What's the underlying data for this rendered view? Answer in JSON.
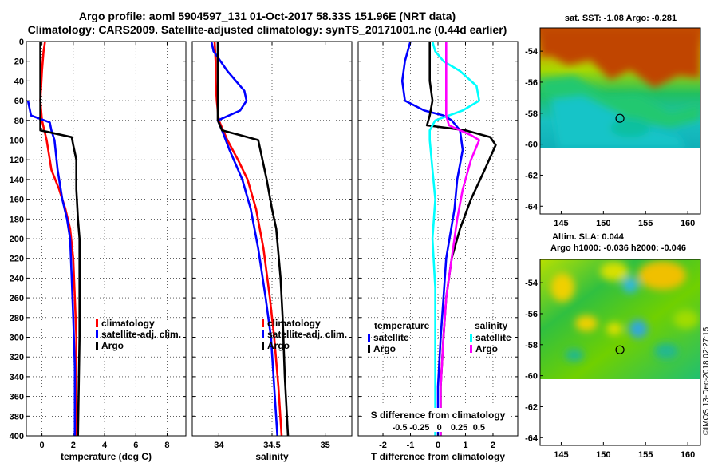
{
  "title_line1": "Argo profile: aoml 5904597_131 01-Oct-2017 58.33S 151.96E (NRT data)",
  "title_line2": "Climatology: CARS2009. Satellite-adjusted climatology: synTS_20171001.nc (0.44d earlier)",
  "colors": {
    "climatology": "#ff0000",
    "satellite": "#0000ff",
    "argo": "#000000",
    "sat_salinity": "#00ffff",
    "argo_salinity": "#ff00ff"
  },
  "chart_data": [
    {
      "type": "line",
      "name": "temperature",
      "xlabel": "temperature (deg C)",
      "xlim": [
        -1,
        9.2
      ],
      "ylim": [
        0,
        400
      ],
      "xticks": [
        0,
        2,
        4,
        6,
        8
      ],
      "yticks": [
        0,
        20,
        40,
        60,
        80,
        100,
        120,
        140,
        160,
        180,
        200,
        220,
        240,
        260,
        280,
        300,
        320,
        340,
        360,
        380,
        400
      ],
      "grid": true,
      "legend": [
        "climatology",
        "satellite-adj. clim.",
        "Argo"
      ],
      "series": [
        {
          "name": "climatology",
          "color": "#ff0000",
          "points": [
            [
              0.2,
              0
            ],
            [
              0.1,
              10
            ],
            [
              0.0,
              30
            ],
            [
              -0.1,
              60
            ],
            [
              0.0,
              80
            ],
            [
              0.3,
              100
            ],
            [
              0.6,
              130
            ],
            [
              1.1,
              150
            ],
            [
              1.5,
              170
            ],
            [
              1.8,
              190
            ],
            [
              2.0,
              220
            ],
            [
              2.1,
              260
            ],
            [
              2.2,
              300
            ],
            [
              2.2,
              350
            ],
            [
              2.2,
              400
            ]
          ]
        },
        {
          "name": "satellite-adj. clim.",
          "color": "#0000ff",
          "points": [
            [
              -0.9,
              60
            ],
            [
              -0.7,
              75
            ],
            [
              0.5,
              82
            ],
            [
              0.6,
              90
            ],
            [
              0.8,
              100
            ],
            [
              1.0,
              130
            ],
            [
              1.3,
              160
            ],
            [
              1.6,
              180
            ],
            [
              1.8,
              200
            ],
            [
              1.9,
              240
            ],
            [
              2.0,
              280
            ],
            [
              2.1,
              330
            ],
            [
              2.1,
              400
            ]
          ]
        },
        {
          "name": "Argo",
          "color": "#000000",
          "points": [
            [
              -0.1,
              0
            ],
            [
              -0.1,
              30
            ],
            [
              -0.1,
              50
            ],
            [
              -0.1,
              70
            ],
            [
              -0.1,
              90
            ],
            [
              1.9,
              97
            ],
            [
              2.0,
              105
            ],
            [
              2.2,
              120
            ],
            [
              2.2,
              150
            ],
            [
              2.3,
              180
            ],
            [
              2.4,
              200
            ],
            [
              2.4,
              260
            ],
            [
              2.4,
              300
            ],
            [
              2.3,
              400
            ]
          ]
        }
      ]
    },
    {
      "type": "line",
      "name": "salinity",
      "xlabel": "salinity",
      "xlim": [
        33.75,
        35.25
      ],
      "ylim": [
        0,
        400
      ],
      "xticks": [
        34,
        34.5,
        35
      ],
      "xticklabels": [
        "34",
        "34.5",
        "35"
      ],
      "grid": true,
      "legend": [
        "climatology",
        "satellite-adj. clim.",
        "Argo"
      ],
      "series": [
        {
          "name": "climatology",
          "color": "#ff0000",
          "points": [
            [
              33.96,
              0
            ],
            [
              33.97,
              20
            ],
            [
              33.97,
              40
            ],
            [
              33.98,
              60
            ],
            [
              34.0,
              80
            ],
            [
              34.08,
              100
            ],
            [
              34.18,
              120
            ],
            [
              34.27,
              140
            ],
            [
              34.35,
              170
            ],
            [
              34.42,
              210
            ],
            [
              34.48,
              260
            ],
            [
              34.52,
              300
            ],
            [
              34.56,
              350
            ],
            [
              34.59,
              400
            ]
          ]
        },
        {
          "name": "satellite-adj. clim.",
          "color": "#0000ff",
          "points": [
            [
              33.93,
              0
            ],
            [
              33.95,
              10
            ],
            [
              34.08,
              30
            ],
            [
              34.24,
              50
            ],
            [
              34.26,
              60
            ],
            [
              34.2,
              70
            ],
            [
              33.99,
              80
            ],
            [
              34.03,
              90
            ],
            [
              34.1,
              110
            ],
            [
              34.22,
              140
            ],
            [
              34.3,
              170
            ],
            [
              34.37,
              210
            ],
            [
              34.44,
              260
            ],
            [
              34.49,
              300
            ],
            [
              34.52,
              350
            ],
            [
              34.55,
              400
            ]
          ]
        },
        {
          "name": "Argo",
          "color": "#000000",
          "points": [
            [
              33.99,
              0
            ],
            [
              33.99,
              40
            ],
            [
              33.99,
              80
            ],
            [
              34.03,
              90
            ],
            [
              34.2,
              95
            ],
            [
              34.37,
              100
            ],
            [
              34.45,
              140
            ],
            [
              34.5,
              170
            ],
            [
              34.54,
              190
            ],
            [
              34.58,
              240
            ],
            [
              34.6,
              280
            ],
            [
              34.62,
              340
            ],
            [
              34.65,
              400
            ]
          ]
        }
      ]
    },
    {
      "type": "line",
      "name": "difference",
      "xlabel": "T difference from climatology",
      "xlim": [
        -2.9,
        2.9
      ],
      "ylim": [
        0,
        400
      ],
      "xticks": [
        -2,
        -1,
        0,
        1,
        2
      ],
      "top_axis_label": "S difference from climatology",
      "top_ticks": [
        "-0.5",
        "-0.25",
        "0",
        "0.25",
        "0.5"
      ],
      "grid": true,
      "legend_temperature": {
        "heading": "temperature",
        "items": [
          "satellite",
          "Argo"
        ]
      },
      "legend_salinity": {
        "heading": "salinity",
        "items": [
          "satellite",
          "Argo"
        ]
      },
      "series": [
        {
          "name": "temperature satellite",
          "color": "#0000ff",
          "points": [
            [
              -1.0,
              0
            ],
            [
              -1.2,
              20
            ],
            [
              -1.3,
              40
            ],
            [
              -1.2,
              60
            ],
            [
              -0.5,
              70
            ],
            [
              0.2,
              75
            ],
            [
              0.5,
              80
            ],
            [
              0.8,
              90
            ],
            [
              0.9,
              110
            ],
            [
              0.7,
              140
            ],
            [
              0.6,
              170
            ],
            [
              0.3,
              220
            ],
            [
              0.2,
              260
            ],
            [
              0.1,
              300
            ],
            [
              0.0,
              350
            ],
            [
              0.0,
              400
            ]
          ]
        },
        {
          "name": "temperature Argo",
          "color": "#000000",
          "points": [
            [
              -0.3,
              0
            ],
            [
              -0.3,
              20
            ],
            [
              -0.3,
              40
            ],
            [
              -0.2,
              60
            ],
            [
              -0.3,
              75
            ],
            [
              -0.4,
              85
            ],
            [
              1.0,
              90
            ],
            [
              1.9,
              97
            ],
            [
              2.1,
              105
            ],
            [
              1.7,
              130
            ],
            [
              1.2,
              160
            ],
            [
              0.8,
              190
            ],
            [
              0.5,
              220
            ],
            [
              0.3,
              260
            ],
            [
              0.2,
              300
            ],
            [
              0.1,
              350
            ],
            [
              0.1,
              400
            ]
          ]
        },
        {
          "name": "salinity satellite",
          "color": "#00ffff",
          "points": [
            [
              -0.2,
              0
            ],
            [
              -0.1,
              10
            ],
            [
              0.2,
              20
            ],
            [
              0.8,
              30
            ],
            [
              1.4,
              45
            ],
            [
              1.5,
              60
            ],
            [
              0.9,
              70
            ],
            [
              -0.1,
              80
            ],
            [
              -0.3,
              90
            ],
            [
              -0.3,
              100
            ],
            [
              -0.2,
              130
            ],
            [
              -0.1,
              160
            ],
            [
              -0.2,
              200
            ],
            [
              -0.1,
              250
            ],
            [
              -0.1,
              300
            ],
            [
              -0.1,
              350
            ],
            [
              -0.1,
              400
            ]
          ]
        },
        {
          "name": "salinity Argo",
          "color": "#ff00ff",
          "points": [
            [
              0.3,
              0
            ],
            [
              0.3,
              20
            ],
            [
              0.3,
              40
            ],
            [
              0.3,
              60
            ],
            [
              0.3,
              75
            ],
            [
              0.4,
              85
            ],
            [
              1.2,
              95
            ],
            [
              1.5,
              100
            ],
            [
              1.2,
              120
            ],
            [
              0.9,
              150
            ],
            [
              0.7,
              180
            ],
            [
              0.5,
              220
            ],
            [
              0.3,
              260
            ],
            [
              0.2,
              300
            ],
            [
              0.1,
              350
            ],
            [
              0.1,
              400
            ]
          ]
        }
      ]
    },
    {
      "type": "heatmap",
      "name": "sst_map",
      "title": "sat. SST: -1.08 Argo: -0.281",
      "xticks": [
        145,
        150,
        155,
        160
      ],
      "yticks": [
        -54,
        -56,
        -58,
        -60,
        -62,
        -64
      ],
      "xlim": [
        142.5,
        161.5
      ],
      "ylim": [
        -64.5,
        -52.5
      ],
      "data_ylim_covered": [
        -60,
        -52.5
      ],
      "argo_position": {
        "lon": 151.96,
        "lat": -58.33
      }
    },
    {
      "type": "heatmap",
      "name": "sla_map",
      "title": "Altim. SLA: 0.044",
      "subtitle": "Argo h1000: -0.036 h2000: -0.046",
      "xticks": [
        145,
        150,
        155,
        160
      ],
      "yticks": [
        -54,
        -56,
        -58,
        -60,
        -62,
        -64
      ],
      "xlim": [
        142.5,
        161.5
      ],
      "ylim": [
        -64.5,
        -52.5
      ],
      "data_ylim_covered": [
        -60,
        -52.5
      ],
      "argo_position": {
        "lon": 151.96,
        "lat": -58.33
      }
    }
  ],
  "credit": "©IMOS 13-Dec-2018 02:27:15"
}
